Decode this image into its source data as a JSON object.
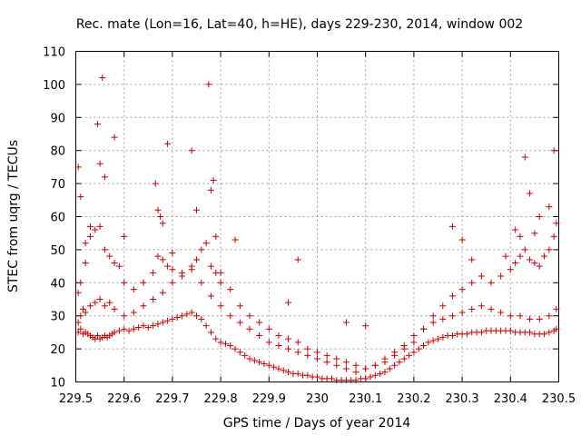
{
  "chart_data": {
    "type": "scatter",
    "title": "Rec. mate (Lon=16, Lat=40, h=HE), days 229-230, 2014, window 002",
    "xlabel": "GPS time / Days of year 2014",
    "ylabel": "STEC from uqrg / TECUs",
    "xlim": [
      229.5,
      230.5
    ],
    "ylim": [
      10,
      110
    ],
    "xticks": [
      "229.5",
      "229.6",
      "229.7",
      "229.8",
      "229.9",
      "230",
      "230.1",
      "230.2",
      "230.3",
      "230.4",
      "230.5"
    ],
    "yticks": [
      "10",
      "20",
      "30",
      "40",
      "50",
      "60",
      "70",
      "80",
      "90",
      "100",
      "110"
    ],
    "grid": true,
    "marker": "+",
    "color": "#cc0000",
    "series": [
      {
        "x": [
          229.505,
          229.51,
          229.515,
          229.52,
          229.525,
          229.53,
          229.535,
          229.54,
          229.545,
          229.55,
          229.555,
          229.56,
          229.565,
          229.57,
          229.575,
          229.58,
          229.59,
          229.6,
          229.61,
          229.62,
          229.63,
          229.64,
          229.65,
          229.66,
          229.67,
          229.68,
          229.69,
          229.7,
          229.71,
          229.72,
          229.73,
          229.74,
          229.75,
          229.76,
          229.77,
          229.78,
          229.79,
          229.8,
          229.81,
          229.82,
          229.83,
          229.84,
          229.85,
          229.86,
          229.87,
          229.88,
          229.89,
          229.9,
          229.91,
          229.92,
          229.93,
          229.94,
          229.95,
          229.96,
          229.97,
          229.98,
          229.99,
          230.0,
          230.01,
          230.02,
          230.03,
          230.04,
          230.05,
          230.06,
          230.07,
          230.08,
          230.09,
          230.1,
          230.11,
          230.12,
          230.13,
          230.14,
          230.15,
          230.16,
          230.17,
          230.18,
          230.19,
          230.2,
          230.21,
          230.22,
          230.23,
          230.24,
          230.25,
          230.26,
          230.27,
          230.28,
          230.29,
          230.3,
          230.31,
          230.32,
          230.33,
          230.34,
          230.35,
          230.36,
          230.37,
          230.38,
          230.39,
          230.4,
          230.41,
          230.42,
          230.43,
          230.44,
          230.45,
          230.46,
          230.47,
          230.48,
          230.49,
          230.495
        ],
        "y": [
          25,
          26,
          24.5,
          25,
          24.5,
          24,
          23.5,
          23,
          24,
          23,
          23.5,
          24,
          23.5,
          24,
          24.5,
          25,
          25.5,
          26,
          25.5,
          26,
          26.5,
          27,
          26.5,
          27,
          27.5,
          28,
          28.5,
          29,
          29.5,
          30,
          30.5,
          31,
          30,
          29,
          27,
          25,
          23,
          22,
          21.5,
          21,
          20,
          19,
          18,
          17,
          16.5,
          16,
          15.5,
          15,
          14.5,
          14,
          13.5,
          13,
          12.5,
          12.5,
          12,
          12,
          11.5,
          11.5,
          11,
          11,
          11,
          10.5,
          10.5,
          10.5,
          10.5,
          10.5,
          11,
          11,
          11.5,
          12,
          12.5,
          13,
          14,
          15,
          16,
          17,
          18,
          19,
          20,
          21,
          22,
          22.5,
          23,
          23.5,
          24,
          24,
          24.5,
          24.5,
          24.5,
          25,
          25,
          25,
          25.5,
          25.5,
          25.5,
          25.5,
          25.5,
          25.5,
          25,
          25,
          25,
          25,
          24.5,
          24.5,
          24.5,
          25,
          25.5,
          26
        ]
      },
      {
        "x": [
          229.505,
          229.51,
          229.515,
          229.52,
          229.53,
          229.54,
          229.55,
          229.56,
          229.57,
          229.58,
          229.6,
          229.62,
          229.64,
          229.66,
          229.68,
          229.7,
          229.72,
          229.74,
          229.76,
          229.78,
          229.8,
          229.82,
          229.84,
          229.86,
          229.88,
          229.9,
          229.92,
          229.94,
          229.96,
          229.98,
          230.0,
          230.02,
          230.04,
          230.06,
          230.08,
          230.1,
          230.12,
          230.14,
          230.16,
          230.18,
          230.2,
          230.22,
          230.24,
          230.26,
          230.28,
          230.3,
          230.32,
          230.34,
          230.36,
          230.38,
          230.4,
          230.42,
          230.44,
          230.46,
          230.48,
          230.495
        ],
        "y": [
          28,
          30,
          32,
          31,
          33,
          34,
          35,
          33,
          34,
          32,
          30,
          31,
          33,
          35,
          37,
          40,
          42,
          44,
          40,
          36,
          33,
          30,
          28,
          26,
          24,
          22,
          21,
          20,
          19,
          18,
          17,
          16,
          15,
          14,
          13,
          14,
          15,
          17,
          19,
          21,
          24,
          26,
          28,
          29,
          30,
          31,
          32,
          33,
          32,
          31,
          30,
          30,
          29,
          29,
          30,
          32
        ]
      },
      {
        "x": [
          229.505,
          229.51,
          229.52,
          229.53,
          229.54,
          229.55,
          229.56,
          229.57,
          229.58,
          229.59,
          229.6,
          229.62,
          229.64,
          229.66,
          229.67,
          229.68,
          229.69,
          229.7,
          229.72,
          229.74,
          229.75,
          229.76,
          229.77,
          229.78,
          229.79,
          229.8,
          229.82,
          229.84,
          229.86,
          229.88,
          229.9,
          229.92,
          229.94,
          229.96,
          229.98,
          230.0,
          230.02,
          230.04,
          230.06,
          230.08,
          230.1,
          230.12,
          230.14,
          230.16,
          230.18,
          230.2,
          230.22,
          230.24,
          230.26,
          230.28,
          230.3,
          230.32,
          230.34,
          230.36,
          230.38,
          230.4,
          230.41,
          230.42,
          230.43,
          230.44,
          230.45,
          230.46,
          230.47,
          230.48,
          230.49,
          230.495
        ],
        "y": [
          37,
          40,
          46,
          54,
          56,
          57,
          50,
          48,
          46,
          45,
          40,
          38,
          40,
          43,
          48,
          47,
          45,
          44,
          43,
          45,
          47,
          50,
          52,
          45,
          43,
          40,
          38,
          33,
          30,
          28,
          26,
          24,
          23,
          22,
          20,
          19,
          18,
          17,
          16,
          15,
          14,
          15,
          16,
          18,
          20,
          22,
          26,
          30,
          33,
          36,
          38,
          40,
          42,
          40,
          42,
          44,
          46,
          48,
          50,
          47,
          46,
          45,
          48,
          50,
          54,
          58
        ]
      },
      {
        "x": [
          229.505,
          229.51,
          229.52,
          229.53,
          229.545,
          229.55,
          229.555,
          229.56,
          229.58,
          229.6,
          229.665,
          229.67,
          229.675,
          229.68,
          229.69,
          229.7,
          229.74,
          229.75,
          229.775,
          229.78,
          229.785,
          229.79,
          229.8,
          229.83,
          229.94,
          229.96,
          230.06,
          230.1,
          230.28,
          230.3,
          230.32,
          230.39,
          230.41,
          230.42,
          230.43,
          230.44,
          230.45,
          230.46,
          230.48,
          230.49
        ],
        "y": [
          75,
          66,
          52,
          57,
          88,
          76,
          102,
          72,
          84,
          54,
          70,
          62,
          60,
          58,
          82,
          49,
          80,
          62,
          100,
          68,
          71,
          54,
          43,
          53,
          34,
          47,
          28,
          27,
          57,
          53,
          47,
          48,
          56,
          54,
          78,
          67,
          55,
          60,
          63,
          80
        ]
      }
    ]
  }
}
